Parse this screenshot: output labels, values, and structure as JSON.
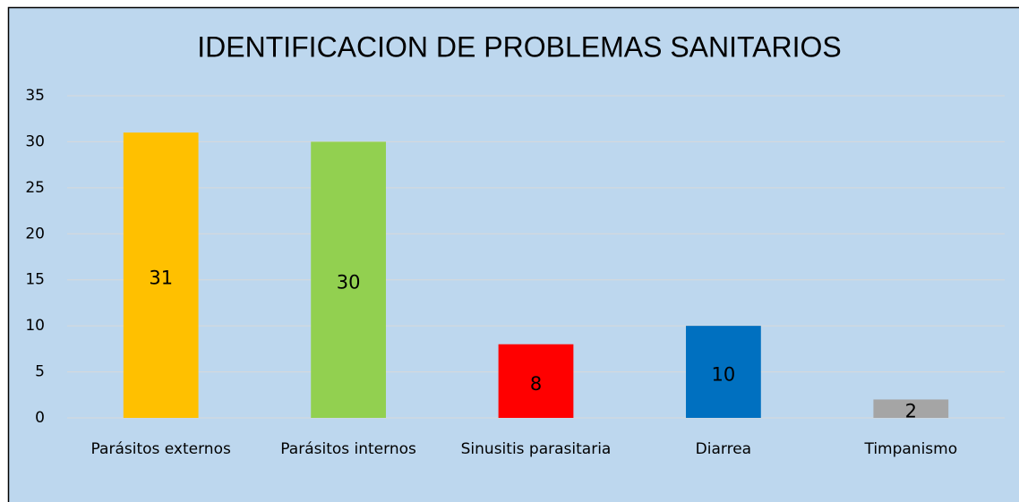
{
  "chart_data": {
    "type": "bar",
    "title": "IDENTIFICACION DE PROBLEMAS SANITARIOS",
    "categories": [
      "Parásitos externos",
      "Parásitos internos",
      "Sinusitis parasitaria",
      "Diarrea",
      "Timpanismo"
    ],
    "values": [
      31,
      30,
      8,
      10,
      2
    ],
    "colors": [
      "#ffc000",
      "#92d050",
      "#ff0000",
      "#0070c0",
      "#a5a5a5"
    ],
    "ylim": [
      0,
      35
    ],
    "yticks": [
      0,
      5,
      10,
      15,
      20,
      25,
      30,
      35
    ],
    "grid": true
  }
}
